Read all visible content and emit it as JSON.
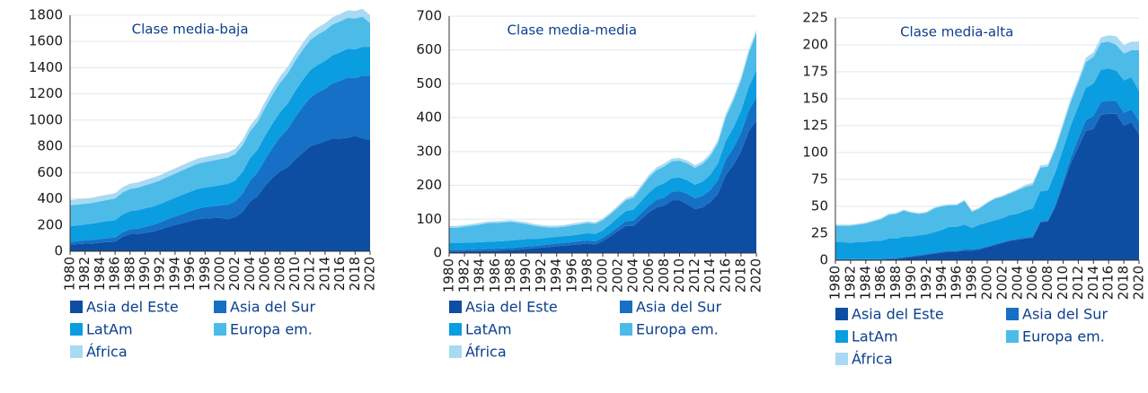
{
  "chart_data": [
    {
      "type": "stacked_area",
      "title": "Clase media-baja",
      "x": [
        1980,
        1981,
        1982,
        1983,
        1984,
        1985,
        1986,
        1987,
        1988,
        1989,
        1990,
        1991,
        1992,
        1993,
        1994,
        1995,
        1996,
        1997,
        1998,
        1999,
        2000,
        2001,
        2002,
        2003,
        2004,
        2005,
        2006,
        2007,
        2008,
        2009,
        2010,
        2011,
        2012,
        2013,
        2014,
        2015,
        2016,
        2017,
        2018,
        2019,
        2020
      ],
      "xlim": [
        1980,
        2020
      ],
      "xticks": [
        1980,
        1982,
        1984,
        1986,
        1988,
        1990,
        1992,
        1994,
        1996,
        1998,
        2000,
        2002,
        2004,
        2006,
        2008,
        2010,
        2012,
        2014,
        2016,
        2018,
        2020
      ],
      "ylim": [
        0,
        1800
      ],
      "yticks": [
        0,
        200,
        400,
        600,
        800,
        1000,
        1200,
        1400,
        1600,
        1800
      ],
      "grid": true,
      "series": [
        {
          "name": "Asia del Este",
          "color": "#0d4ea3",
          "values": [
            50,
            55,
            58,
            60,
            65,
            70,
            72,
            110,
            130,
            130,
            140,
            150,
            165,
            185,
            200,
            215,
            230,
            245,
            250,
            252,
            255,
            245,
            260,
            300,
            380,
            420,
            500,
            560,
            610,
            640,
            700,
            750,
            800,
            820,
            840,
            860,
            860,
            865,
            880,
            860,
            850
          ]
        },
        {
          "name": "Asia del Sur",
          "color": "#1570c6",
          "values": [
            20,
            22,
            24,
            26,
            28,
            30,
            32,
            35,
            38,
            42,
            46,
            50,
            55,
            60,
            65,
            70,
            75,
            80,
            85,
            90,
            95,
            110,
            120,
            140,
            160,
            180,
            200,
            230,
            260,
            290,
            320,
            350,
            370,
            390,
            400,
            420,
            440,
            460,
            440,
            480,
            490
          ]
        },
        {
          "name": "LatAm",
          "color": "#0a9de0",
          "values": [
            120,
            120,
            122,
            125,
            128,
            130,
            133,
            135,
            138,
            140,
            142,
            140,
            140,
            140,
            142,
            145,
            148,
            150,
            150,
            152,
            155,
            158,
            160,
            165,
            170,
            175,
            180,
            185,
            190,
            195,
            200,
            205,
            210,
            210,
            212,
            215,
            218,
            220,
            220,
            220,
            220
          ]
        },
        {
          "name": "Europa em.",
          "color": "#4cbbe8",
          "values": [
            160,
            160,
            158,
            158,
            160,
            162,
            165,
            168,
            170,
            172,
            175,
            180,
            180,
            182,
            185,
            188,
            190,
            192,
            195,
            197,
            198,
            200,
            200,
            202,
            205,
            210,
            215,
            220,
            225,
            230,
            230,
            230,
            230,
            232,
            232,
            235,
            235,
            235,
            235,
            230,
            180
          ]
        },
        {
          "name": "África",
          "color": "#a8daf3",
          "values": [
            40,
            40,
            40,
            40,
            40,
            40,
            40,
            40,
            40,
            40,
            40,
            40,
            40,
            40,
            40,
            40,
            40,
            40,
            40,
            40,
            40,
            40,
            40,
            42,
            42,
            44,
            45,
            46,
            48,
            50,
            50,
            52,
            52,
            54,
            55,
            55,
            56,
            58,
            58,
            60,
            60
          ]
        }
      ]
    },
    {
      "type": "stacked_area",
      "title": "Clase media-media",
      "x": [
        1980,
        1981,
        1982,
        1983,
        1984,
        1985,
        1986,
        1987,
        1988,
        1989,
        1990,
        1991,
        1992,
        1993,
        1994,
        1995,
        1996,
        1997,
        1998,
        1999,
        2000,
        2001,
        2002,
        2003,
        2004,
        2005,
        2006,
        2007,
        2008,
        2009,
        2010,
        2011,
        2012,
        2013,
        2014,
        2015,
        2016,
        2017,
        2018,
        2019,
        2020
      ],
      "xlim": [
        1980,
        2020
      ],
      "xticks": [
        1980,
        1982,
        1984,
        1986,
        1988,
        1990,
        1992,
        1994,
        1996,
        1998,
        2000,
        2002,
        2004,
        2006,
        2008,
        2010,
        2012,
        2014,
        2016,
        2018,
        2020
      ],
      "ylim": [
        0,
        700
      ],
      "yticks": [
        0,
        100,
        200,
        300,
        400,
        500,
        600,
        700
      ],
      "grid": true,
      "series": [
        {
          "name": "Asia del Este",
          "color": "#0d4ea3",
          "values": [
            5,
            5,
            5,
            6,
            6,
            7,
            7,
            8,
            8,
            10,
            12,
            14,
            16,
            18,
            20,
            22,
            24,
            26,
            28,
            25,
            35,
            50,
            65,
            80,
            80,
            100,
            120,
            135,
            140,
            155,
            155,
            145,
            130,
            135,
            150,
            175,
            230,
            260,
            300,
            360,
            390
          ]
        },
        {
          "name": "Asia del Sur",
          "color": "#1570c6",
          "values": [
            5,
            5,
            5,
            5,
            6,
            6,
            6,
            6,
            7,
            7,
            7,
            7,
            7,
            8,
            8,
            8,
            8,
            9,
            9,
            9,
            10,
            10,
            12,
            14,
            16,
            18,
            20,
            22,
            24,
            26,
            28,
            30,
            32,
            34,
            36,
            40,
            45,
            50,
            55,
            60,
            70
          ]
        },
        {
          "name": "LatAm",
          "color": "#0a9de0",
          "values": [
            20,
            20,
            20,
            20,
            20,
            20,
            21,
            21,
            22,
            22,
            22,
            20,
            20,
            20,
            20,
            20,
            20,
            20,
            22,
            22,
            22,
            25,
            28,
            30,
            32,
            35,
            38,
            40,
            42,
            40,
            40,
            40,
            40,
            42,
            45,
            50,
            55,
            60,
            65,
            70,
            80
          ]
        },
        {
          "name": "Europa em.",
          "color": "#4cbbe8",
          "values": [
            45,
            45,
            48,
            50,
            52,
            55,
            55,
            55,
            55,
            50,
            45,
            40,
            35,
            30,
            28,
            28,
            30,
            30,
            30,
            30,
            30,
            30,
            30,
            32,
            35,
            40,
            45,
            48,
            50,
            50,
            50,
            50,
            50,
            52,
            55,
            60,
            70,
            80,
            90,
            100,
            110
          ]
        },
        {
          "name": "África",
          "color": "#a8daf3",
          "values": [
            5,
            5,
            5,
            5,
            5,
            5,
            5,
            5,
            5,
            5,
            5,
            5,
            5,
            5,
            5,
            5,
            5,
            5,
            5,
            5,
            5,
            5,
            6,
            6,
            7,
            7,
            8,
            8,
            8,
            8,
            8,
            8,
            8,
            8,
            9,
            9,
            10,
            10,
            10,
            10,
            10
          ]
        }
      ]
    },
    {
      "type": "stacked_area",
      "title": "Clase media-alta",
      "x": [
        1980,
        1981,
        1982,
        1983,
        1984,
        1985,
        1986,
        1987,
        1988,
        1989,
        1990,
        1991,
        1992,
        1993,
        1994,
        1995,
        1996,
        1997,
        1998,
        1999,
        2000,
        2001,
        2002,
        2003,
        2004,
        2005,
        2006,
        2007,
        2008,
        2009,
        2010,
        2011,
        2012,
        2013,
        2014,
        2015,
        2016,
        2017,
        2018,
        2019,
        2020
      ],
      "xlim": [
        1980,
        2020
      ],
      "xticks": [
        1980,
        1982,
        1984,
        1986,
        1988,
        1990,
        1992,
        1994,
        1996,
        1998,
        2000,
        2002,
        2004,
        2006,
        2008,
        2010,
        2012,
        2014,
        2016,
        2018,
        2020
      ],
      "ylim": [
        0,
        225
      ],
      "yticks": [
        0,
        25,
        50,
        75,
        100,
        125,
        150,
        175,
        200,
        225
      ],
      "grid": true,
      "series": [
        {
          "name": "Asia del Este",
          "color": "#0d4ea3",
          "values": [
            0,
            0,
            0,
            0,
            0,
            0,
            0,
            1,
            1,
            2,
            3,
            4,
            5,
            6,
            7,
            8,
            8,
            9,
            9,
            10,
            12,
            14,
            16,
            18,
            19,
            20,
            21,
            35,
            36,
            50,
            70,
            90,
            105,
            120,
            122,
            135,
            136,
            136,
            125,
            128,
            117
          ]
        },
        {
          "name": "Asia del Sur",
          "color": "#1570c6",
          "values": [
            1,
            1,
            1,
            1,
            1,
            1,
            1,
            1,
            1,
            1,
            1,
            1,
            1,
            1,
            1,
            1,
            1,
            1,
            1,
            1,
            1,
            1,
            1,
            1,
            1,
            1,
            1,
            1,
            1,
            2,
            3,
            5,
            8,
            10,
            12,
            12,
            12,
            12,
            12,
            12,
            12
          ]
        },
        {
          "name": "LatAm",
          "color": "#0a9de0",
          "values": [
            16,
            16,
            15,
            16,
            16,
            17,
            17,
            18,
            18,
            19,
            18,
            18,
            18,
            19,
            20,
            22,
            22,
            23,
            20,
            22,
            22,
            22,
            22,
            23,
            23,
            25,
            26,
            28,
            28,
            30,
            30,
            30,
            30,
            30,
            30,
            30,
            30,
            28,
            30,
            30,
            28
          ]
        },
        {
          "name": "Europa em.",
          "color": "#4cbbe8",
          "values": [
            15,
            15,
            16,
            16,
            17,
            18,
            20,
            22,
            23,
            24,
            22,
            20,
            20,
            22,
            22,
            20,
            20,
            22,
            15,
            15,
            18,
            20,
            20,
            20,
            22,
            22,
            22,
            22,
            22,
            22,
            22,
            22,
            22,
            24,
            25,
            25,
            25,
            24,
            25,
            25,
            38
          ]
        },
        {
          "name": "África",
          "color": "#a8daf3",
          "values": [
            1,
            1,
            1,
            1,
            1,
            1,
            1,
            1,
            1,
            1,
            1,
            1,
            1,
            1,
            1,
            1,
            1,
            1,
            1,
            1,
            1,
            1,
            1,
            1,
            1,
            2,
            2,
            2,
            2,
            2,
            3,
            3,
            3,
            4,
            4,
            5,
            6,
            8,
            8,
            8,
            8
          ]
        }
      ]
    }
  ]
}
